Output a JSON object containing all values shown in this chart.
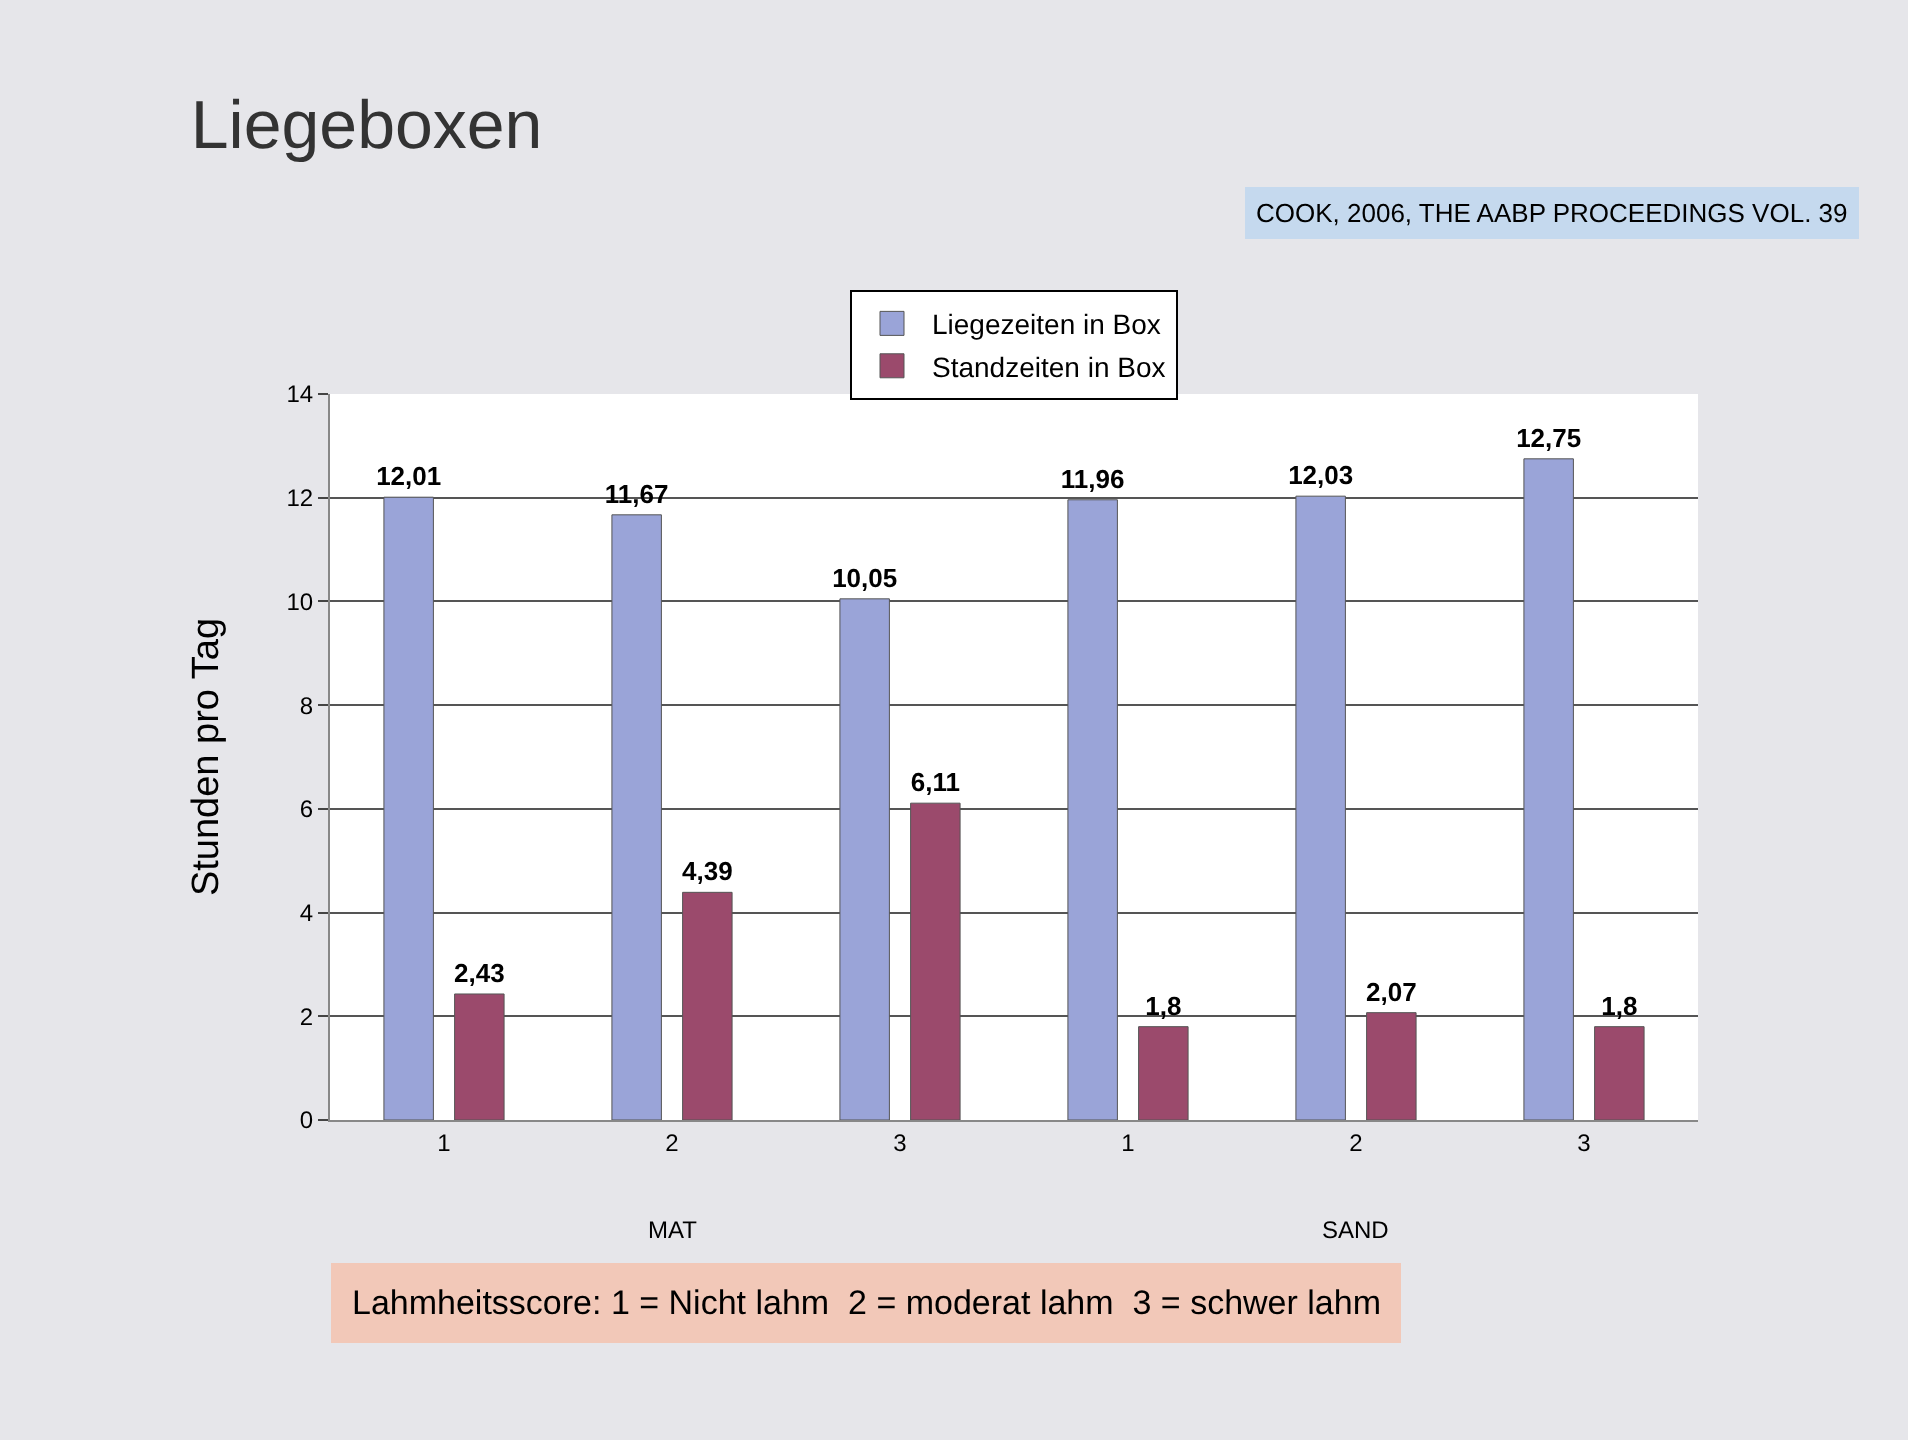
{
  "chart_data": {
    "type": "bar",
    "title": "Liegeboxen",
    "ylabel": "Stunden pro Tag",
    "annotations": [
      "COOK, 2006, THE AABP PROCEEDINGS VOL. 39",
      "MAT",
      "SAND",
      "Lahmheitsscore: 1 = Nicht lahm  2 = moderat lahm  3 = schwer lahm"
    ],
    "categories": [
      "1",
      "2",
      "3",
      "1",
      "2",
      "3"
    ],
    "series": [
      {
        "name": "Liegezeiten in Box",
        "color": "#9aa4d8",
        "values": [
          12.01,
          11.67,
          10.05,
          11.96,
          12.03,
          12.75
        ],
        "value_labels": [
          "12,01",
          "11,67",
          "10,05",
          "11,96",
          "12,03",
          "12,75"
        ]
      },
      {
        "name": "Standzeiten in Box",
        "color": "#9b4a6c",
        "values": [
          2.43,
          4.39,
          6.11,
          1.8,
          2.07,
          1.8
        ],
        "value_labels": [
          "2,43",
          "4,39",
          "6,11",
          "1,8",
          "2,07",
          "1,8"
        ]
      }
    ],
    "ylim": [
      0,
      14
    ],
    "yticks": [
      0,
      2,
      4,
      6,
      8,
      10,
      12,
      14
    ],
    "grid": "y",
    "legend": "top"
  }
}
